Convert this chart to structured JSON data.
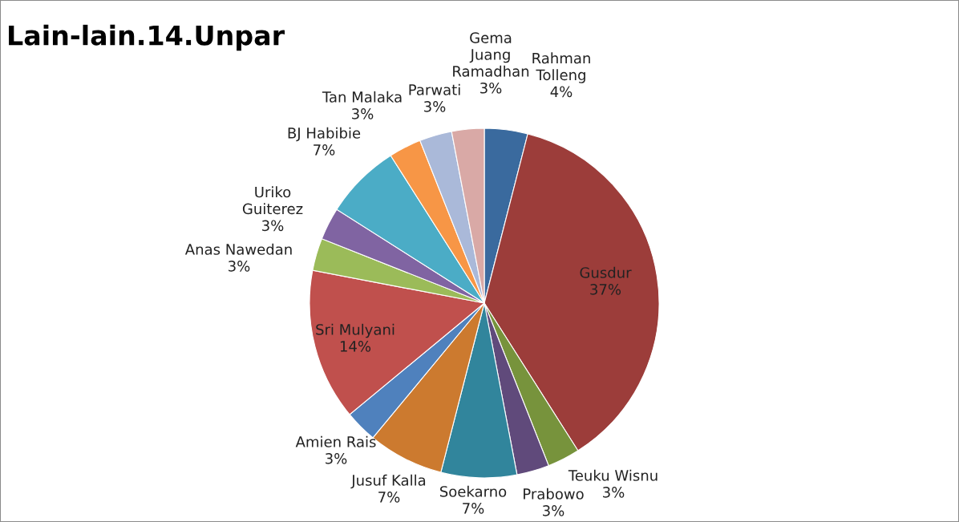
{
  "chart_data": {
    "type": "pie",
    "title": "Lain-lain.14.Unpar",
    "categories": [
      "Rahman\nTolleng",
      "Gusdur",
      "Teuku Wisnu",
      "Prabowo",
      "Soekarno",
      "Jusuf Kalla",
      "Amien Rais",
      "Sri Mulyani",
      "Anas Nawedan",
      "Uriko\nGuiterez",
      "BJ Habibie",
      "Tan Malaka",
      "Parwati",
      "Gema\nJuang\nRamadhan"
    ],
    "values": [
      4,
      37,
      3,
      3,
      7,
      7,
      3,
      14,
      3,
      3,
      7,
      3,
      3,
      3
    ],
    "value_labels": [
      "4%",
      "37%",
      "3%",
      "3%",
      "7%",
      "7%",
      "3%",
      "14%",
      "3%",
      "3%",
      "7%",
      "3%",
      "3%",
      "3%"
    ],
    "colors": [
      "#3a6a9e",
      "#9c3d3a",
      "#77933c",
      "#604a7b",
      "#31859c",
      "#cc7a2f",
      "#4f81bd",
      "#c0504d",
      "#9bbb59",
      "#8064a2",
      "#4bacc6",
      "#f79646",
      "#aab9d9",
      "#d9a9a6"
    ]
  }
}
